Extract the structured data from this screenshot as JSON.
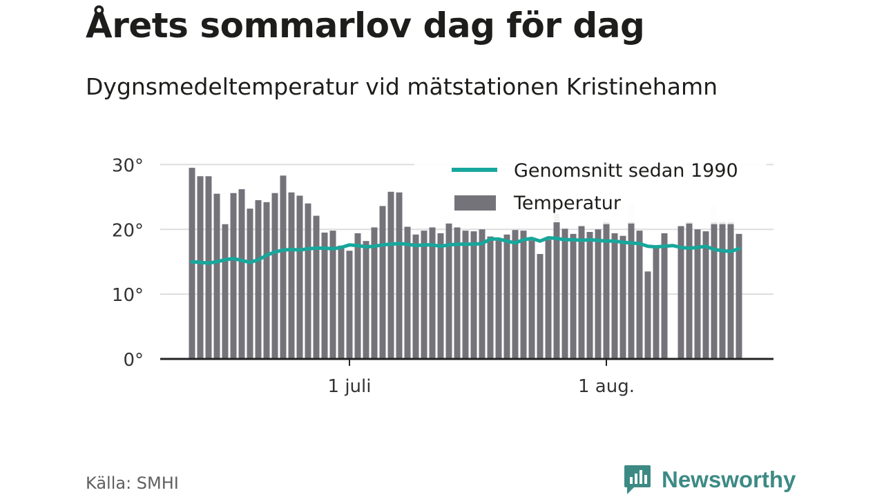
{
  "title": "Årets sommarlov dag för dag",
  "subtitle": "Dygnsmedeltemperatur vid mätstationen Kristinehamn",
  "source": "Källa: SMHI",
  "brand": {
    "name": "Newsworthy",
    "color": "#3d8a85"
  },
  "colors": {
    "bar": "#75737a",
    "bar_highlight": "#e6e6e6",
    "avg_line": "#17a79c",
    "grid": "#dddddd",
    "axis": "#222222"
  },
  "chart_data": {
    "type": "bar",
    "x_start": "2024-06-12",
    "x_ticks": [
      {
        "date": "2024-07-01",
        "label": "1 juli"
      },
      {
        "date": "2024-08-01",
        "label": "1 aug."
      }
    ],
    "ylim": [
      0,
      31
    ],
    "y_ticks": [
      {
        "value": 0,
        "label": "0°"
      },
      {
        "value": 10,
        "label": "10°"
      },
      {
        "value": 20,
        "label": "20°"
      },
      {
        "value": 30,
        "label": "30°"
      }
    ],
    "legend": {
      "position": "top-right",
      "avg_label": "Genomsnitt sedan 1990",
      "temp_label": "Temperatur"
    },
    "temperature": [
      29.5,
      28.2,
      28.2,
      25.5,
      20.8,
      25.6,
      26.2,
      23.2,
      24.5,
      24.2,
      25.6,
      28.3,
      25.7,
      25.2,
      24.0,
      22.1,
      19.5,
      19.8,
      17.5,
      16.7,
      19.4,
      18.2,
      20.3,
      23.6,
      25.8,
      25.7,
      20.4,
      19.2,
      19.8,
      20.3,
      19.4,
      20.9,
      20.3,
      19.8,
      19.7,
      20.0,
      18.9,
      18.6,
      19.2,
      19.9,
      19.8,
      18.3,
      16.2,
      18.4,
      22.4,
      20.1,
      19.3,
      20.5,
      19.6,
      20.0,
      20.8,
      19.4,
      19.0,
      20.9,
      19.8,
      13.5,
      17.3,
      19.4,
      null,
      20.5,
      20.9,
      20.0,
      19.7,
      20.8,
      20.8,
      20.8,
      19.3
    ],
    "temperature_extra": [
      0,
      0,
      0,
      0,
      0,
      0,
      0,
      0,
      0,
      0,
      0,
      0,
      0,
      0,
      0,
      0,
      0,
      0,
      0,
      0,
      0,
      0,
      0,
      0,
      0,
      0,
      0,
      0,
      0,
      0,
      0,
      0,
      0,
      0,
      0,
      0,
      0,
      0,
      0,
      0,
      0,
      0,
      0,
      0,
      0,
      0,
      0,
      0,
      0,
      0,
      0.8,
      0,
      0,
      3.2,
      0,
      0,
      0,
      0,
      0,
      0,
      0.4,
      0,
      0,
      2.9,
      0.6,
      0.9,
      0
    ],
    "average_since_1990": [
      15.0,
      14.9,
      14.8,
      15.0,
      15.3,
      15.5,
      15.2,
      14.9,
      15.3,
      16.0,
      16.5,
      16.8,
      16.9,
      16.8,
      17.0,
      17.1,
      17.1,
      17.0,
      17.2,
      17.6,
      17.5,
      17.3,
      17.4,
      17.6,
      17.7,
      17.8,
      17.7,
      17.5,
      17.6,
      17.6,
      17.4,
      17.6,
      17.7,
      17.7,
      17.7,
      17.8,
      18.5,
      18.5,
      18.2,
      17.9,
      18.4,
      18.6,
      18.2,
      18.7,
      18.6,
      18.4,
      18.4,
      18.3,
      18.4,
      18.3,
      18.2,
      18.2,
      18.0,
      17.9,
      17.8,
      17.4,
      17.3,
      17.4,
      17.5,
      17.2,
      17.1,
      17.2,
      17.4,
      16.9,
      16.7,
      16.6,
      17.0
    ]
  }
}
